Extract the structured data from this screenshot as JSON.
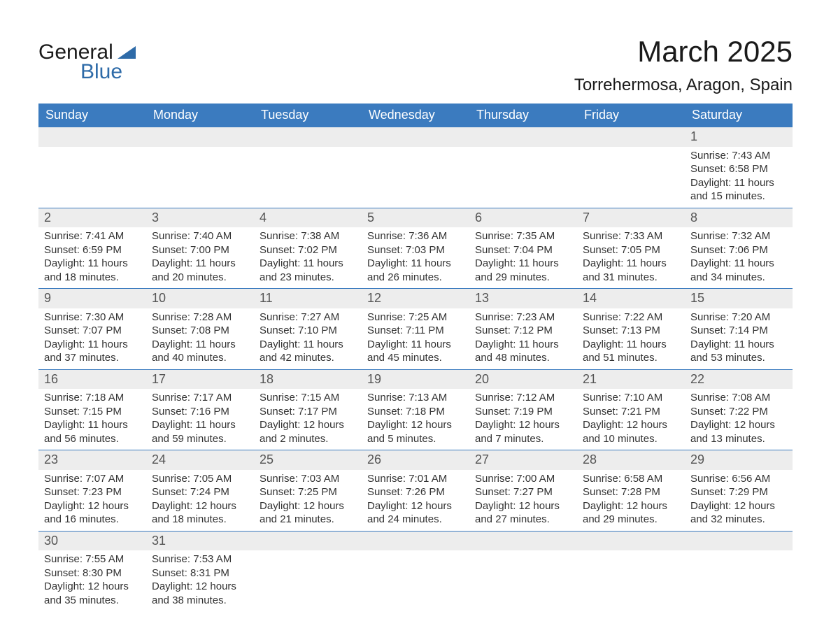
{
  "logo": {
    "text_general": "General",
    "text_blue": "Blue",
    "brand_color": "#2e6ba8"
  },
  "title": "March 2025",
  "location": "Torrehermosa, Aragon, Spain",
  "colors": {
    "header_bg": "#3b7bbf",
    "header_text": "#ffffff",
    "daynum_bg": "#ededed",
    "body_text": "#333333",
    "rule": "#3b7bbf"
  },
  "day_names": [
    "Sunday",
    "Monday",
    "Tuesday",
    "Wednesday",
    "Thursday",
    "Friday",
    "Saturday"
  ],
  "weeks": [
    [
      null,
      null,
      null,
      null,
      null,
      null,
      {
        "n": 1,
        "sunrise": "7:43 AM",
        "sunset": "6:58 PM",
        "daylight": "11 hours and 15 minutes."
      }
    ],
    [
      {
        "n": 2,
        "sunrise": "7:41 AM",
        "sunset": "6:59 PM",
        "daylight": "11 hours and 18 minutes."
      },
      {
        "n": 3,
        "sunrise": "7:40 AM",
        "sunset": "7:00 PM",
        "daylight": "11 hours and 20 minutes."
      },
      {
        "n": 4,
        "sunrise": "7:38 AM",
        "sunset": "7:02 PM",
        "daylight": "11 hours and 23 minutes."
      },
      {
        "n": 5,
        "sunrise": "7:36 AM",
        "sunset": "7:03 PM",
        "daylight": "11 hours and 26 minutes."
      },
      {
        "n": 6,
        "sunrise": "7:35 AM",
        "sunset": "7:04 PM",
        "daylight": "11 hours and 29 minutes."
      },
      {
        "n": 7,
        "sunrise": "7:33 AM",
        "sunset": "7:05 PM",
        "daylight": "11 hours and 31 minutes."
      },
      {
        "n": 8,
        "sunrise": "7:32 AM",
        "sunset": "7:06 PM",
        "daylight": "11 hours and 34 minutes."
      }
    ],
    [
      {
        "n": 9,
        "sunrise": "7:30 AM",
        "sunset": "7:07 PM",
        "daylight": "11 hours and 37 minutes."
      },
      {
        "n": 10,
        "sunrise": "7:28 AM",
        "sunset": "7:08 PM",
        "daylight": "11 hours and 40 minutes."
      },
      {
        "n": 11,
        "sunrise": "7:27 AM",
        "sunset": "7:10 PM",
        "daylight": "11 hours and 42 minutes."
      },
      {
        "n": 12,
        "sunrise": "7:25 AM",
        "sunset": "7:11 PM",
        "daylight": "11 hours and 45 minutes."
      },
      {
        "n": 13,
        "sunrise": "7:23 AM",
        "sunset": "7:12 PM",
        "daylight": "11 hours and 48 minutes."
      },
      {
        "n": 14,
        "sunrise": "7:22 AM",
        "sunset": "7:13 PM",
        "daylight": "11 hours and 51 minutes."
      },
      {
        "n": 15,
        "sunrise": "7:20 AM",
        "sunset": "7:14 PM",
        "daylight": "11 hours and 53 minutes."
      }
    ],
    [
      {
        "n": 16,
        "sunrise": "7:18 AM",
        "sunset": "7:15 PM",
        "daylight": "11 hours and 56 minutes."
      },
      {
        "n": 17,
        "sunrise": "7:17 AM",
        "sunset": "7:16 PM",
        "daylight": "11 hours and 59 minutes."
      },
      {
        "n": 18,
        "sunrise": "7:15 AM",
        "sunset": "7:17 PM",
        "daylight": "12 hours and 2 minutes."
      },
      {
        "n": 19,
        "sunrise": "7:13 AM",
        "sunset": "7:18 PM",
        "daylight": "12 hours and 5 minutes."
      },
      {
        "n": 20,
        "sunrise": "7:12 AM",
        "sunset": "7:19 PM",
        "daylight": "12 hours and 7 minutes."
      },
      {
        "n": 21,
        "sunrise": "7:10 AM",
        "sunset": "7:21 PM",
        "daylight": "12 hours and 10 minutes."
      },
      {
        "n": 22,
        "sunrise": "7:08 AM",
        "sunset": "7:22 PM",
        "daylight": "12 hours and 13 minutes."
      }
    ],
    [
      {
        "n": 23,
        "sunrise": "7:07 AM",
        "sunset": "7:23 PM",
        "daylight": "12 hours and 16 minutes."
      },
      {
        "n": 24,
        "sunrise": "7:05 AM",
        "sunset": "7:24 PM",
        "daylight": "12 hours and 18 minutes."
      },
      {
        "n": 25,
        "sunrise": "7:03 AM",
        "sunset": "7:25 PM",
        "daylight": "12 hours and 21 minutes."
      },
      {
        "n": 26,
        "sunrise": "7:01 AM",
        "sunset": "7:26 PM",
        "daylight": "12 hours and 24 minutes."
      },
      {
        "n": 27,
        "sunrise": "7:00 AM",
        "sunset": "7:27 PM",
        "daylight": "12 hours and 27 minutes."
      },
      {
        "n": 28,
        "sunrise": "6:58 AM",
        "sunset": "7:28 PM",
        "daylight": "12 hours and 29 minutes."
      },
      {
        "n": 29,
        "sunrise": "6:56 AM",
        "sunset": "7:29 PM",
        "daylight": "12 hours and 32 minutes."
      }
    ],
    [
      {
        "n": 30,
        "sunrise": "7:55 AM",
        "sunset": "8:30 PM",
        "daylight": "12 hours and 35 minutes."
      },
      {
        "n": 31,
        "sunrise": "7:53 AM",
        "sunset": "8:31 PM",
        "daylight": "12 hours and 38 minutes."
      },
      null,
      null,
      null,
      null,
      null
    ]
  ],
  "labels": {
    "sunrise": "Sunrise: ",
    "sunset": "Sunset: ",
    "daylight": "Daylight: "
  }
}
